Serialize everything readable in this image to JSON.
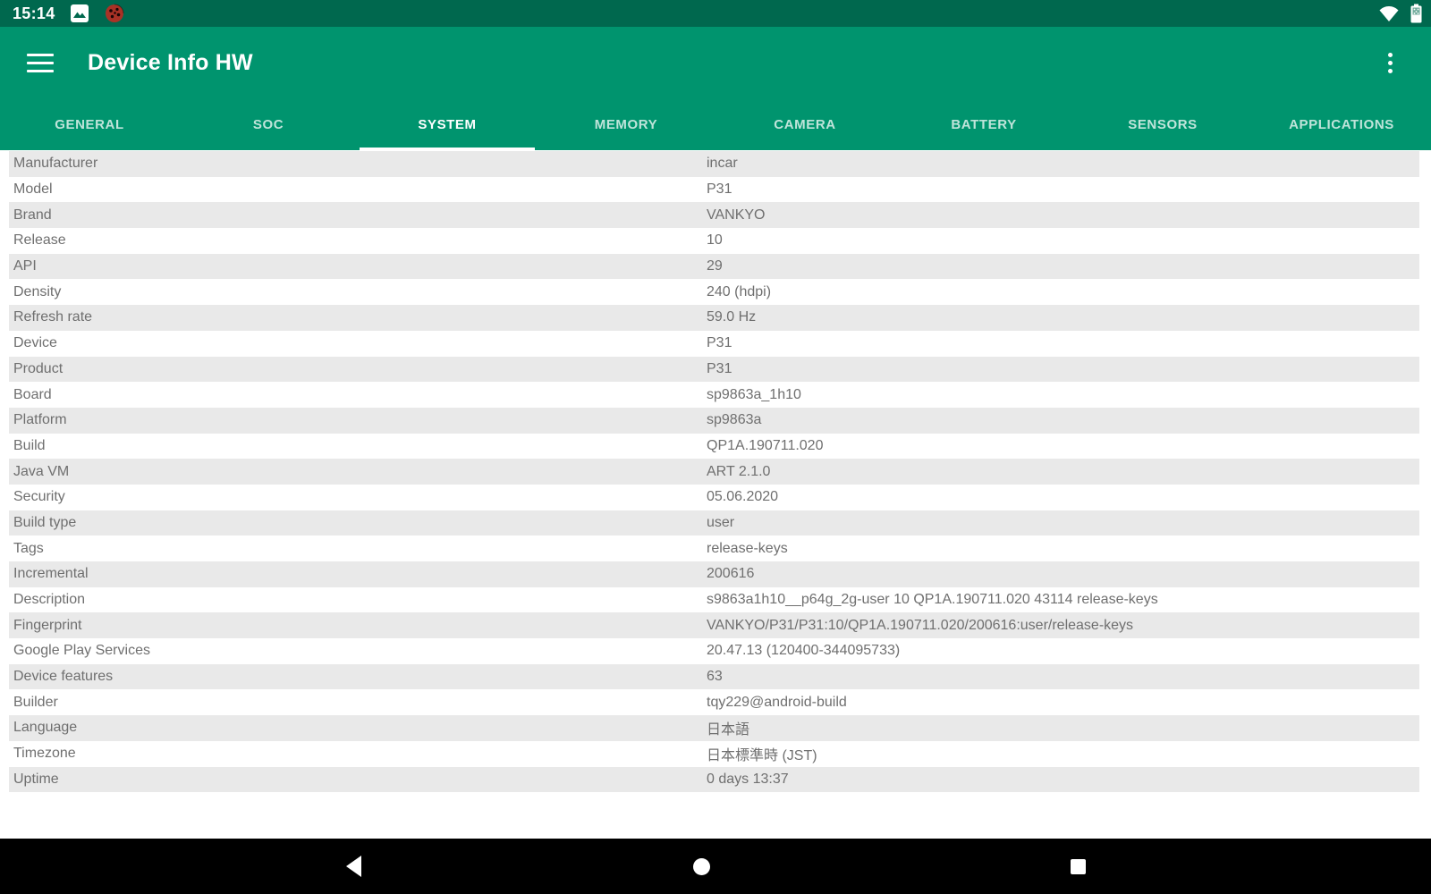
{
  "colors": {
    "app_bar": "#00946E",
    "status_bar": "#00684E",
    "nav_bar": "#000000",
    "row_alt": "#E9E9E9",
    "table_text": "#6F6F6F",
    "tab_indicator": "#FFFFFF"
  },
  "status_bar": {
    "time": "15:14",
    "left_icons": [
      "photo-notification-icon",
      "bug-report-icon"
    ],
    "right_icons": [
      "wifi-icon",
      "battery-icon"
    ]
  },
  "app_bar": {
    "title": "Device Info HW",
    "menu_icon": "hamburger-menu-icon",
    "overflow_icon": "overflow-menu-icon"
  },
  "tabs": {
    "selected_index": 2,
    "items": [
      "GENERAL",
      "SOC",
      "SYSTEM",
      "MEMORY",
      "CAMERA",
      "BATTERY",
      "SENSORS",
      "APPLICATIONS"
    ]
  },
  "table": {
    "rows": [
      {
        "label": "Manufacturer",
        "value": "incar"
      },
      {
        "label": "Model",
        "value": "P31"
      },
      {
        "label": "Brand",
        "value": "VANKYO"
      },
      {
        "label": "Release",
        "value": "10"
      },
      {
        "label": "API",
        "value": "29"
      },
      {
        "label": "Density",
        "value": "240 (hdpi)"
      },
      {
        "label": "Refresh rate",
        "value": "59.0 Hz"
      },
      {
        "label": "Device",
        "value": "P31"
      },
      {
        "label": "Product",
        "value": "P31"
      },
      {
        "label": "Board",
        "value": "sp9863a_1h10"
      },
      {
        "label": "Platform",
        "value": "sp9863a"
      },
      {
        "label": "Build",
        "value": "QP1A.190711.020"
      },
      {
        "label": "Java VM",
        "value": "ART 2.1.0"
      },
      {
        "label": "Security",
        "value": "05.06.2020"
      },
      {
        "label": "Build type",
        "value": "user"
      },
      {
        "label": "Tags",
        "value": "release-keys"
      },
      {
        "label": "Incremental",
        "value": "200616"
      },
      {
        "label": "Description",
        "value": "s9863a1h10__p64g_2g-user 10 QP1A.190711.020 43114 release-keys"
      },
      {
        "label": "Fingerprint",
        "value": "VANKYO/P31/P31:10/QP1A.190711.020/200616:user/release-keys"
      },
      {
        "label": "Google Play Services",
        "value": "20.47.13 (120400-344095733)"
      },
      {
        "label": "Device features",
        "value": "63"
      },
      {
        "label": "Builder",
        "value": "tqy229@android-build"
      },
      {
        "label": "Language",
        "value": "日本語"
      },
      {
        "label": "Timezone",
        "value": "日本標準時 (JST)"
      },
      {
        "label": "Uptime",
        "value": "0 days 13:37"
      }
    ]
  },
  "nav_bar": {
    "buttons": [
      "back",
      "home",
      "recents"
    ]
  }
}
